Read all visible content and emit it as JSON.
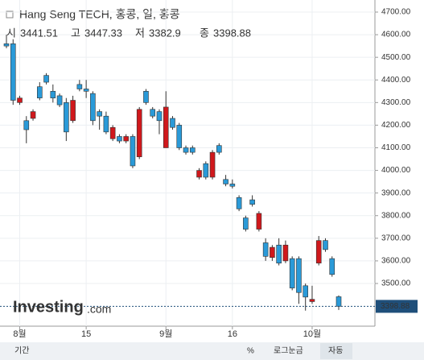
{
  "chart_data": {
    "type": "candlestick",
    "title": "Hang Seng TECH, 홍콩, 일, 홍콩",
    "ohlc_labels": [
      "시",
      "고",
      "저",
      "종"
    ],
    "logo": "Investing",
    "logo_suffix": ".com",
    "toolbar": [
      "기간",
      "%",
      "로그눈금",
      "자동"
    ],
    "up_color": "#d0181c",
    "down_color": "#2a9ad8",
    "grid": true,
    "categories": [
      null,
      null,
      "8월",
      null,
      null,
      null,
      null,
      null,
      null,
      null,
      null,
      null,
      "15",
      null,
      null,
      null,
      null,
      null,
      null,
      null,
      null,
      null,
      null,
      null,
      "9월",
      null,
      null,
      null,
      null,
      null,
      null,
      null,
      null,
      null,
      "16",
      null,
      null,
      null,
      null,
      null,
      null,
      null,
      null,
      null,
      null,
      null,
      "10월",
      null,
      null,
      null,
      null
    ],
    "open": [
      4560,
      4560,
      4300,
      4220,
      4230,
      4370,
      4420,
      4350,
      4330,
      4300,
      4220,
      4380,
      4360,
      4340,
      4260,
      4240,
      4140,
      4150,
      4130,
      4150,
      4060,
      4350,
      4270,
      4260,
      4100,
      4230,
      4200,
      4100,
      4100,
      3970,
      4030,
      3970,
      4110,
      3960,
      3940,
      3880,
      3790,
      3870,
      3740,
      3680,
      3615,
      3670,
      3600,
      3610,
      3610,
      3490,
      3420,
      3590,
      3690,
      3610,
      3441.51
    ],
    "high": [
      4600,
      4580,
      4330,
      4240,
      4270,
      4390,
      4430,
      4380,
      4340,
      4320,
      4330,
      4400,
      4400,
      4350,
      4270,
      4260,
      4200,
      4160,
      4160,
      4160,
      4280,
      4360,
      4280,
      4270,
      4350,
      4240,
      4210,
      4110,
      4110,
      4010,
      4040,
      4090,
      4120,
      3980,
      3960,
      3890,
      3800,
      3890,
      3820,
      3700,
      3670,
      3700,
      3690,
      3620,
      3620,
      3500,
      3490,
      3710,
      3700,
      3620,
      3447.33
    ],
    "low": [
      4540,
      4290,
      4290,
      4120,
      4220,
      4310,
      4380,
      4300,
      4280,
      4130,
      4210,
      4350,
      4320,
      4200,
      4180,
      4160,
      4130,
      4120,
      4120,
      4010,
      4050,
      4290,
      4230,
      4160,
      4100,
      4180,
      4090,
      4070,
      4070,
      3960,
      3960,
      3960,
      4070,
      3930,
      3920,
      3820,
      3730,
      3840,
      3730,
      3600,
      3600,
      3580,
      3590,
      3470,
      3410,
      3380,
      3410,
      3580,
      3640,
      3530,
      3382.9
    ],
    "close": [
      4550,
      4310,
      4320,
      4180,
      4260,
      4320,
      4390,
      4320,
      4290,
      4170,
      4310,
      4360,
      4350,
      4220,
      4240,
      4170,
      4190,
      4130,
      4150,
      4020,
      4270,
      4300,
      4240,
      4220,
      4280,
      4190,
      4100,
      4080,
      4080,
      4000,
      3970,
      4080,
      4080,
      3940,
      3930,
      3830,
      3740,
      3850,
      3810,
      3620,
      3660,
      3590,
      3670,
      3480,
      3460,
      3440,
      3430,
      3690,
      3650,
      3540,
      3398.88
    ],
    "ylim": [
      3300,
      4750
    ],
    "yticks": [
      {
        "value": 3500,
        "label": "3500.00"
      },
      {
        "value": 3600,
        "label": "3600.00"
      },
      {
        "value": 3700,
        "label": "3700.00"
      },
      {
        "value": 3800,
        "label": "3800.00"
      },
      {
        "value": 3900,
        "label": "3900.00"
      },
      {
        "value": 4000,
        "label": "4000.00"
      },
      {
        "value": 4100,
        "label": "4100.00"
      },
      {
        "value": 4200,
        "label": "4200.00"
      },
      {
        "value": 4300,
        "label": "4300.00"
      },
      {
        "value": 4400,
        "label": "4400.00"
      },
      {
        "value": 4500,
        "label": "4500.00"
      },
      {
        "value": 4600,
        "label": "4600.00"
      },
      {
        "value": 4700,
        "label": "4700.00"
      }
    ]
  }
}
